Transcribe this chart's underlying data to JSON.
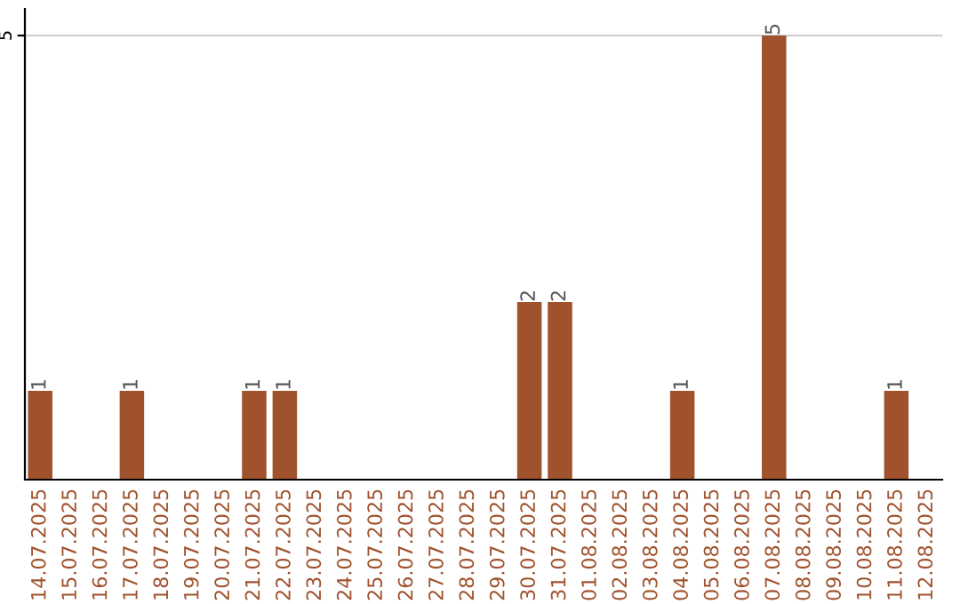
{
  "chart_data": {
    "type": "bar",
    "categories": [
      "14.07.2025",
      "15.07.2025",
      "16.07.2025",
      "17.07.2025",
      "18.07.2025",
      "19.07.2025",
      "20.07.2025",
      "21.07.2025",
      "22.07.2025",
      "23.07.2025",
      "24.07.2025",
      "25.07.2025",
      "26.07.2025",
      "27.07.2025",
      "28.07.2025",
      "29.07.2025",
      "30.07.2025",
      "31.07.2025",
      "01.08.2025",
      "02.08.2025",
      "03.08.2025",
      "04.08.2025",
      "05.08.2025",
      "06.08.2025",
      "07.08.2025",
      "08.08.2025",
      "09.08.2025",
      "10.08.2025",
      "11.08.2025",
      "12.08.2025"
    ],
    "values": [
      1,
      0,
      0,
      1,
      0,
      0,
      0,
      1,
      1,
      0,
      0,
      0,
      0,
      0,
      0,
      0,
      2,
      2,
      0,
      0,
      0,
      1,
      0,
      0,
      5,
      0,
      0,
      0,
      1,
      0
    ],
    "value_labels": [
      "1",
      null,
      null,
      "1",
      null,
      null,
      null,
      "1",
      "1",
      null,
      null,
      null,
      null,
      null,
      null,
      null,
      "2",
      "2",
      null,
      null,
      null,
      "1",
      null,
      null,
      "5",
      null,
      null,
      null,
      "1",
      null
    ],
    "color": "#a0522d",
    "ylim": [
      0,
      5.3
    ],
    "yticks": [
      5
    ],
    "grid": "y"
  }
}
